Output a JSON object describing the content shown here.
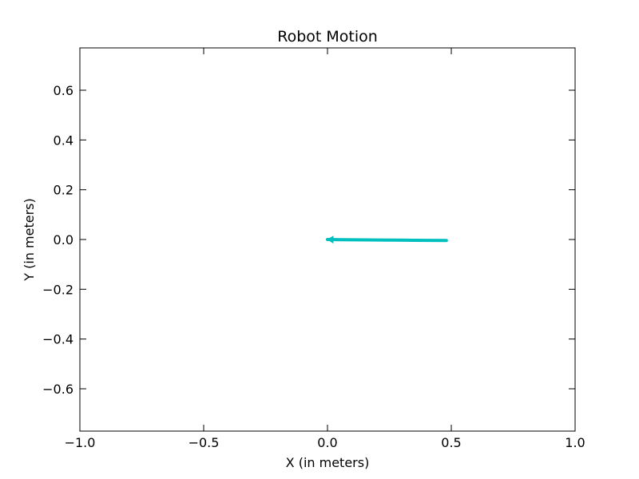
{
  "chart_data": {
    "type": "line",
    "title": "Robot Motion",
    "xlabel": "X (in meters)",
    "ylabel": "Y (in meters)",
    "xlim": [
      -1.0,
      1.0
    ],
    "ylim": [
      -0.77,
      0.77
    ],
    "xticks": [
      -1.0,
      -0.5,
      0.0,
      0.5,
      1.0
    ],
    "xtick_labels": [
      "−1.0",
      "−0.5",
      "0.0",
      "0.5",
      "1.0"
    ],
    "yticks": [
      -0.6,
      -0.4,
      -0.2,
      0.0,
      0.2,
      0.4,
      0.6
    ],
    "ytick_labels": [
      "−0.6",
      "−0.4",
      "−0.2",
      "0.0",
      "0.2",
      "0.4",
      "0.6"
    ],
    "grid": false,
    "series": [
      {
        "color": "#00bfbf",
        "x": [
          0.48,
          0.35,
          0.2,
          0.05,
          0.0
        ],
        "y": [
          -0.004,
          -0.003,
          -0.002,
          -0.001,
          0.0
        ]
      }
    ],
    "arrow_at": "end"
  }
}
